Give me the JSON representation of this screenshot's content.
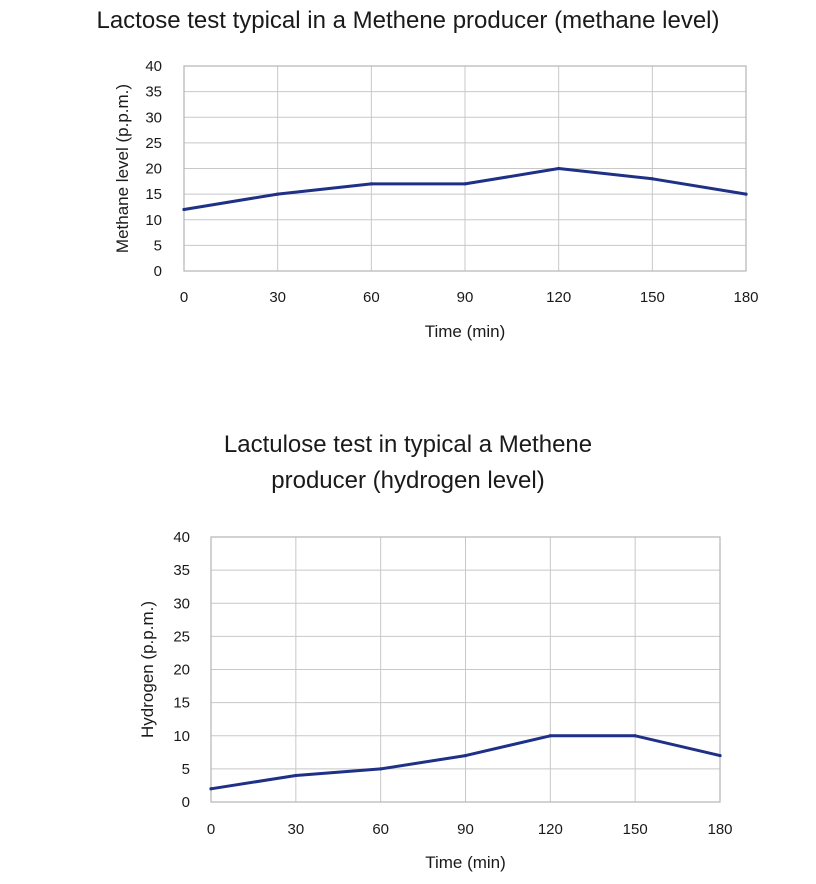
{
  "chart_data": [
    {
      "type": "line",
      "title": "Lactose test typical in a Methene producer (methane level)",
      "xlabel": "Time (min)",
      "ylabel": "Methane level (p.p.m.)",
      "x": [
        0,
        30,
        60,
        90,
        120,
        150,
        180
      ],
      "y": [
        12,
        15,
        17,
        17,
        20,
        18,
        15
      ],
      "xlim": [
        0,
        180
      ],
      "ylim": [
        0,
        40
      ],
      "xticks": [
        "0",
        "30",
        "60",
        "90",
        "120",
        "150",
        "180"
      ],
      "yticks": [
        "0",
        "5",
        "10",
        "15",
        "20",
        "25",
        "30",
        "35",
        "40"
      ],
      "grid": true,
      "color": "#1f3087"
    },
    {
      "type": "line",
      "title_lines": [
        "Lactulose test in typical a Methene",
        "producer (hydrogen level)"
      ],
      "xlabel": "Time (min)",
      "ylabel": "Hydrogen (p.p.m.)",
      "x": [
        0,
        30,
        60,
        90,
        120,
        150,
        180
      ],
      "y": [
        2,
        4,
        5,
        7,
        10,
        10,
        7
      ],
      "xlim": [
        0,
        180
      ],
      "ylim": [
        0,
        40
      ],
      "xticks": [
        "0",
        "30",
        "60",
        "90",
        "120",
        "150",
        "180"
      ],
      "yticks": [
        "0",
        "5",
        "10",
        "15",
        "20",
        "25",
        "30",
        "35",
        "40"
      ],
      "grid": true,
      "color": "#1f3087"
    }
  ]
}
